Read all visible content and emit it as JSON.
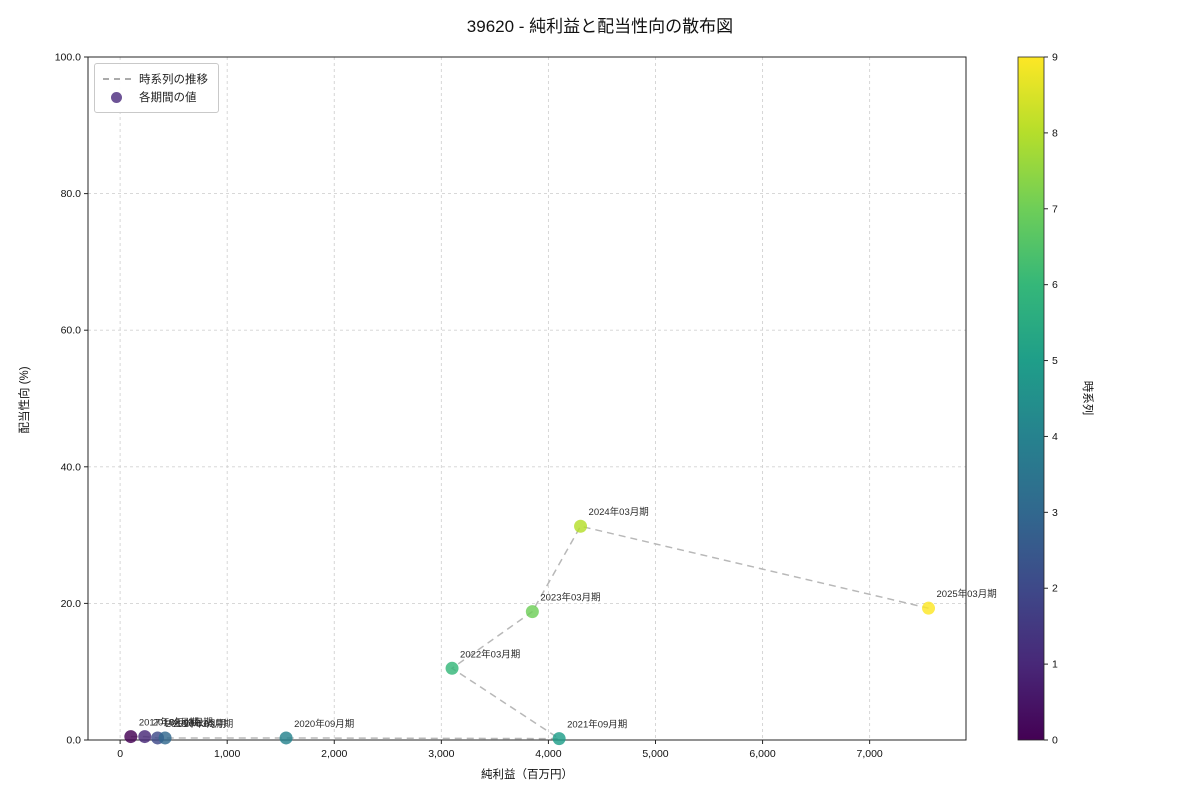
{
  "chart_data": {
    "type": "scatter",
    "title": "39620 - 純利益と配当性向の散布図",
    "xlabel": "純利益（百万円）",
    "ylabel": "配当性向 (%)",
    "xlim": [
      -300,
      7900
    ],
    "ylim": [
      0,
      100
    ],
    "xticks": [
      0,
      1000,
      2000,
      3000,
      4000,
      5000,
      6000,
      7000
    ],
    "xtick_labels": [
      "0",
      "1,000",
      "2,000",
      "3,000",
      "4,000",
      "5,000",
      "6,000",
      "7,000"
    ],
    "yticks": [
      0,
      20,
      40,
      60,
      80,
      100
    ],
    "ytick_labels": [
      "0.0",
      "20.0",
      "40.0",
      "60.0",
      "80.0",
      "100.0"
    ],
    "grid": true,
    "legend": {
      "position": "upper left",
      "line_label": "時系列の推移",
      "point_label": "各期間の値",
      "line_color": "#ababab",
      "point_color": "#6d5396"
    },
    "colorbar": {
      "label": "時系列",
      "min": 0,
      "max": 9,
      "ticks": [
        0,
        1,
        2,
        3,
        4,
        5,
        6,
        7,
        8,
        9
      ],
      "colors": [
        "#440154",
        "#482878",
        "#3e4989",
        "#31688e",
        "#26828e",
        "#1f9e89",
        "#35b779",
        "#6ece58",
        "#b5de2b",
        "#fde725"
      ]
    },
    "points": [
      {
        "t": 0,
        "label": "2017年03月期",
        "x": 100,
        "y": 0.5
      },
      {
        "t": 1,
        "label": "2018年03月期",
        "x": 230,
        "y": 0.5
      },
      {
        "t": 2,
        "label": "2019年03月期",
        "x": 350,
        "y": 0.3
      },
      {
        "t": 3,
        "label": "2020年03月期",
        "x": 420,
        "y": 0.3
      },
      {
        "t": 4,
        "label": "2020年09月期",
        "x": 1550,
        "y": 0.3
      },
      {
        "t": 5,
        "label": "2021年09月期",
        "x": 4100,
        "y": 0.2
      },
      {
        "t": 6,
        "label": "2022年03月期",
        "x": 3100,
        "y": 10.5
      },
      {
        "t": 7,
        "label": "2023年03月期",
        "x": 3850,
        "y": 18.8
      },
      {
        "t": 8,
        "label": "2024年03月期",
        "x": 4300,
        "y": 31.3
      },
      {
        "t": 9,
        "label": "2025年03月期",
        "x": 7550,
        "y": 19.3
      }
    ]
  }
}
